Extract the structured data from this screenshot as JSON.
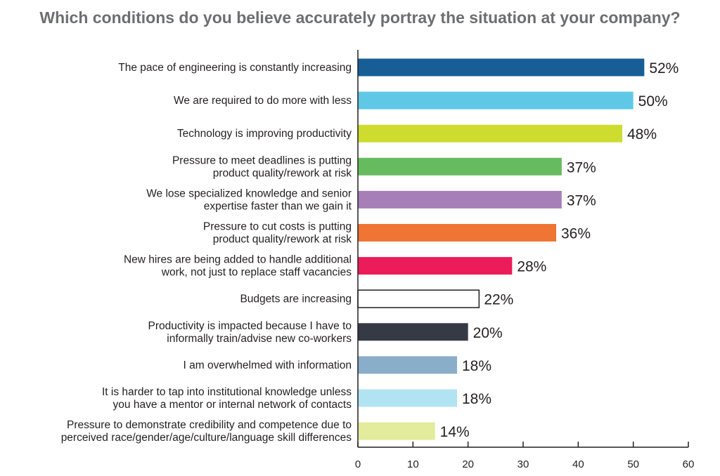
{
  "chart_data": {
    "type": "bar",
    "orientation": "horizontal",
    "title": "Which conditions do you believe accurately portray the situation at your company?",
    "categories": [
      [
        "The pace of engineering is constantly increasing"
      ],
      [
        "We are required to do more with less"
      ],
      [
        "Technology is improving productivity"
      ],
      [
        "Pressure to meet deadlines is putting",
        "product quality/rework at risk"
      ],
      [
        "We lose specialized knowledge and senior",
        "expertise faster than we gain it"
      ],
      [
        "Pressure to cut costs is putting",
        "product quality/rework at risk"
      ],
      [
        "New hires are being added to handle additional",
        "work, not just to replace staff vacancies"
      ],
      [
        "Budgets are increasing"
      ],
      [
        "Productivity is impacted because I have to",
        "informally train/advise new co-workers"
      ],
      [
        "I am overwhelmed with information"
      ],
      [
        "It is harder to tap into institutional knowledge unless",
        "you have a mentor or internal network of contacts"
      ],
      [
        "Pressure to demonstrate credibility and competence due to",
        "perceived race/gender/age/culture/language skill differences"
      ]
    ],
    "values": [
      52,
      50,
      48,
      37,
      37,
      36,
      28,
      22,
      20,
      18,
      18,
      14
    ],
    "value_labels": [
      "52%",
      "50%",
      "48%",
      "37%",
      "37%",
      "36%",
      "28%",
      "22%",
      "20%",
      "18%",
      "18%",
      "14%"
    ],
    "colors": [
      "#175e96",
      "#5fc8e6",
      "#cddc2e",
      "#66bb5f",
      "#a77fb8",
      "#f07433",
      "#ec1c5b",
      "#ffffff",
      "#363a45",
      "#8aadca",
      "#b1e3f3",
      "#e3eb9c"
    ],
    "outlines": [
      "none",
      "none",
      "none",
      "none",
      "none",
      "none",
      "none",
      "#231f20",
      "none",
      "none",
      "none",
      "none"
    ],
    "xlim": [
      0,
      60
    ],
    "xticks": [
      0,
      10,
      20,
      30,
      40,
      50,
      60
    ],
    "xlabel": "",
    "ylabel": "",
    "grid": false,
    "legend": "none"
  }
}
